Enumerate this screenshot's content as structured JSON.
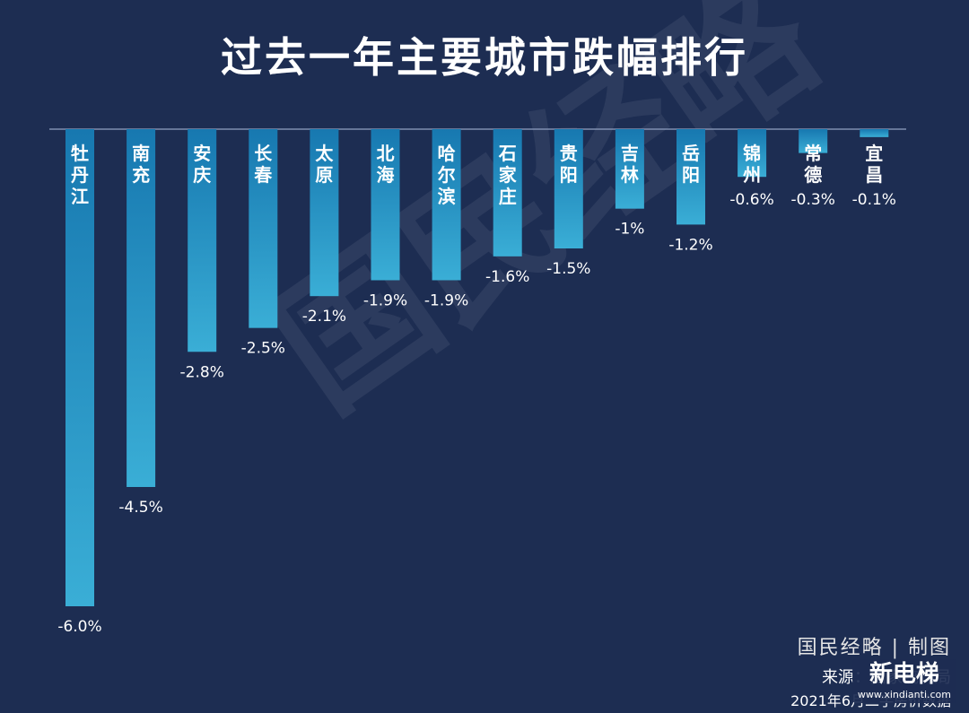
{
  "title": "过去一年主要城市跌幅排行",
  "watermark": "国民经略",
  "credit": "国民经略 | 制图",
  "source": "来源：国家统计局",
  "date": "2021年6月二手房价数据",
  "logo": {
    "text": "新电梯",
    "sub": "www.xindianti.com"
  },
  "colors": {
    "background": "#1d2d52",
    "bar_top": "#1778b0",
    "bar_bottom": "#3aaed6"
  },
  "chart_data": {
    "type": "bar",
    "orientation": "vertical-down",
    "categories": [
      "牡丹江",
      "南充",
      "安庆",
      "长春",
      "太原",
      "北海",
      "哈尔滨",
      "石家庄",
      "贵阳",
      "吉林",
      "岳阳",
      "锦州",
      "常德",
      "宜昌"
    ],
    "values": [
      -6.0,
      -4.5,
      -2.8,
      -2.5,
      -2.1,
      -1.9,
      -1.9,
      -1.6,
      -1.5,
      -1.0,
      -1.2,
      -0.6,
      -0.3,
      -0.1
    ],
    "value_labels": [
      "-6.0%",
      "-4.5%",
      "-2.8%",
      "-2.5%",
      "-2.1%",
      "-1.9%",
      "-1.9%",
      "-1.6%",
      "-1.5%",
      "-1%",
      "-1.2%",
      "-0.6%",
      "-0.3%",
      "-0.1%"
    ],
    "ylim": [
      -6.0,
      0
    ],
    "grid": false,
    "legend": "none"
  }
}
